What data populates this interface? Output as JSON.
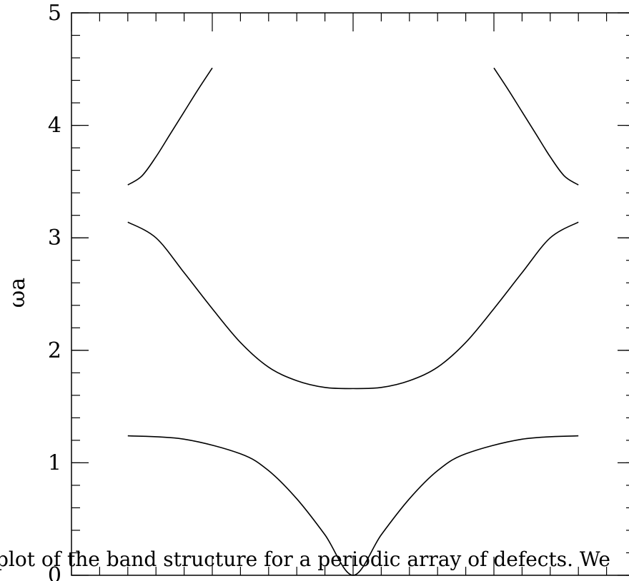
{
  "chart_data": {
    "type": "line",
    "title": "",
    "xlabel": "",
    "ylabel": "ωa",
    "xlim": [
      -1,
      1
    ],
    "ylim": [
      0,
      5
    ],
    "y_ticks": [
      {
        "value": 0,
        "label": "0"
      },
      {
        "value": 1,
        "label": "1"
      },
      {
        "value": 2,
        "label": "2"
      },
      {
        "value": 3,
        "label": "3"
      },
      {
        "value": 4,
        "label": "4"
      },
      {
        "value": 5,
        "label": "5"
      }
    ],
    "grid": false,
    "caption_fragment": "plot of the band structure for a periodic array of defects. We",
    "series": [
      {
        "x": [
          -0.8,
          -0.6,
          -0.4,
          -0.3,
          -0.2,
          -0.1,
          0,
          0.1,
          0.2,
          0.3,
          0.4,
          0.6,
          0.8
        ],
        "y": [
          1.24,
          1.21,
          1.08,
          0.93,
          0.68,
          0.36,
          0.0,
          0.36,
          0.68,
          0.93,
          1.08,
          1.21,
          1.24
        ]
      },
      {
        "x": [
          -0.8,
          -0.7,
          -0.6,
          -0.5,
          -0.4,
          -0.3,
          -0.2,
          -0.1,
          0,
          0.1,
          0.2,
          0.3,
          0.4,
          0.5,
          0.6,
          0.7,
          0.8
        ],
        "y": [
          3.14,
          3.0,
          2.69,
          2.37,
          2.07,
          1.85,
          1.73,
          1.67,
          1.66,
          1.67,
          1.73,
          1.85,
          2.07,
          2.37,
          2.69,
          3.0,
          3.14
        ],
        "break_after_index": 100
      },
      {
        "x": [
          -0.8,
          -0.75,
          -0.7,
          -0.65,
          -0.6,
          -0.55,
          -0.5
        ],
        "y": [
          3.47,
          3.55,
          3.72,
          3.92,
          4.12,
          4.32,
          4.51
        ]
      },
      {
        "x": [
          0.5,
          0.55,
          0.6,
          0.65,
          0.7,
          0.75,
          0.8
        ],
        "y": [
          4.51,
          4.32,
          4.12,
          3.92,
          3.72,
          3.55,
          3.47
        ]
      }
    ]
  }
}
